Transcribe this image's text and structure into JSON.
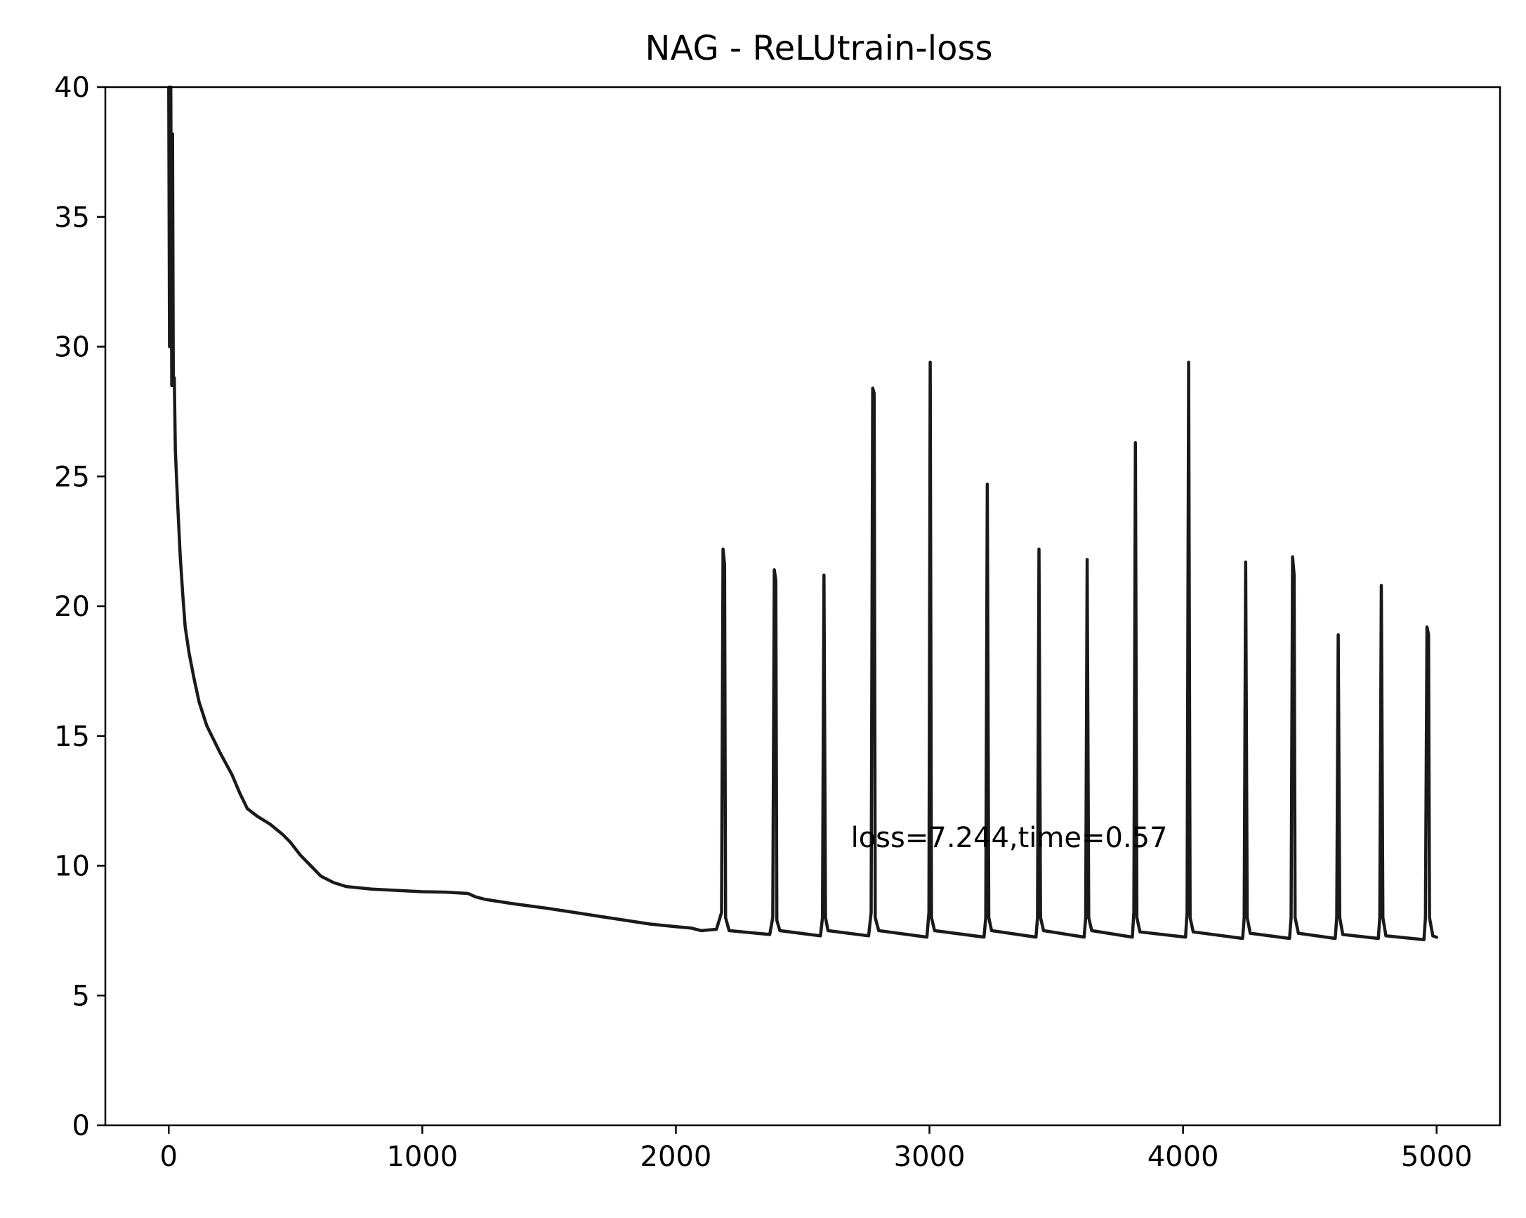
{
  "chart_data": {
    "type": "line",
    "title": "NAG - ReLUtrain-loss",
    "xlabel": "",
    "ylabel": "",
    "xlim": [
      -250,
      5250
    ],
    "ylim": [
      0,
      40
    ],
    "x_ticks": [
      0,
      1000,
      2000,
      3000,
      4000,
      5000
    ],
    "y_ticks": [
      0,
      5,
      10,
      15,
      20,
      25,
      30,
      35,
      40
    ],
    "grid": false,
    "legend": "none",
    "line_color": "#1a1a1a",
    "annotation": {
      "text": "loss=7.244,time=0.57",
      "x": 2690,
      "y": 11.1
    },
    "series": [
      {
        "values": [
          [
            0,
            40
          ],
          [
            3,
            30
          ],
          [
            8,
            40
          ],
          [
            12,
            28.5
          ],
          [
            15,
            38.2
          ],
          [
            18,
            28.5
          ],
          [
            22,
            28.8
          ],
          [
            26,
            26
          ],
          [
            35,
            24
          ],
          [
            45,
            22
          ],
          [
            55,
            20.5
          ],
          [
            65,
            19.2
          ],
          [
            80,
            18.2
          ],
          [
            100,
            17.2
          ],
          [
            120,
            16.3
          ],
          [
            150,
            15.4
          ],
          [
            200,
            14.4
          ],
          [
            250,
            13.5
          ],
          [
            280,
            12.8
          ],
          [
            310,
            12.2
          ],
          [
            350,
            11.9
          ],
          [
            400,
            11.6
          ],
          [
            450,
            11.2
          ],
          [
            480,
            10.9
          ],
          [
            520,
            10.4
          ],
          [
            560,
            10.0
          ],
          [
            600,
            9.6
          ],
          [
            650,
            9.35
          ],
          [
            700,
            9.2
          ],
          [
            800,
            9.1
          ],
          [
            900,
            9.05
          ],
          [
            1000,
            9.0
          ],
          [
            1100,
            8.98
          ],
          [
            1180,
            8.93
          ],
          [
            1210,
            8.8
          ],
          [
            1250,
            8.7
          ],
          [
            1350,
            8.55
          ],
          [
            1500,
            8.35
          ],
          [
            1600,
            8.2
          ],
          [
            1700,
            8.05
          ],
          [
            1800,
            7.9
          ],
          [
            1900,
            7.75
          ],
          [
            2000,
            7.65
          ],
          [
            2060,
            7.6
          ],
          [
            2100,
            7.5
          ],
          [
            2160,
            7.55
          ],
          [
            2180,
            8.2
          ],
          [
            2186,
            22.2
          ],
          [
            2192,
            21.6
          ],
          [
            2196,
            8.0
          ],
          [
            2210,
            7.5
          ],
          [
            2370,
            7.35
          ],
          [
            2382,
            8.0
          ],
          [
            2388,
            21.4
          ],
          [
            2394,
            21.0
          ],
          [
            2398,
            7.9
          ],
          [
            2410,
            7.5
          ],
          [
            2570,
            7.3
          ],
          [
            2578,
            8.0
          ],
          [
            2584,
            21.2
          ],
          [
            2590,
            8.0
          ],
          [
            2600,
            7.5
          ],
          [
            2760,
            7.3
          ],
          [
            2770,
            8.2
          ],
          [
            2776,
            28.4
          ],
          [
            2782,
            28.2
          ],
          [
            2786,
            8.0
          ],
          [
            2800,
            7.5
          ],
          [
            2990,
            7.25
          ],
          [
            2998,
            8.2
          ],
          [
            3003,
            29.4
          ],
          [
            3008,
            8.0
          ],
          [
            3020,
            7.5
          ],
          [
            3215,
            7.25
          ],
          [
            3222,
            8.0
          ],
          [
            3228,
            24.7
          ],
          [
            3234,
            8.0
          ],
          [
            3245,
            7.5
          ],
          [
            3420,
            7.25
          ],
          [
            3426,
            8.0
          ],
          [
            3432,
            22.2
          ],
          [
            3438,
            8.0
          ],
          [
            3450,
            7.5
          ],
          [
            3610,
            7.25
          ],
          [
            3616,
            8.0
          ],
          [
            3622,
            21.8
          ],
          [
            3628,
            8.0
          ],
          [
            3640,
            7.5
          ],
          [
            3800,
            7.25
          ],
          [
            3806,
            8.2
          ],
          [
            3812,
            26.3
          ],
          [
            3818,
            8.0
          ],
          [
            3830,
            7.45
          ],
          [
            4010,
            7.25
          ],
          [
            4016,
            8.2
          ],
          [
            4022,
            29.4
          ],
          [
            4028,
            8.0
          ],
          [
            4040,
            7.45
          ],
          [
            4235,
            7.2
          ],
          [
            4241,
            8.0
          ],
          [
            4247,
            21.7
          ],
          [
            4253,
            8.0
          ],
          [
            4265,
            7.4
          ],
          [
            4420,
            7.2
          ],
          [
            4426,
            8.0
          ],
          [
            4432,
            21.9
          ],
          [
            4438,
            21.2
          ],
          [
            4442,
            8.0
          ],
          [
            4455,
            7.4
          ],
          [
            4600,
            7.2
          ],
          [
            4606,
            8.0
          ],
          [
            4612,
            18.9
          ],
          [
            4618,
            8.0
          ],
          [
            4630,
            7.35
          ],
          [
            4770,
            7.2
          ],
          [
            4776,
            8.0
          ],
          [
            4782,
            20.8
          ],
          [
            4788,
            8.0
          ],
          [
            4800,
            7.3
          ],
          [
            4950,
            7.15
          ],
          [
            4956,
            8.0
          ],
          [
            4962,
            19.2
          ],
          [
            4968,
            18.9
          ],
          [
            4972,
            8.0
          ],
          [
            4985,
            7.3
          ],
          [
            5000,
            7.244
          ]
        ]
      }
    ]
  }
}
